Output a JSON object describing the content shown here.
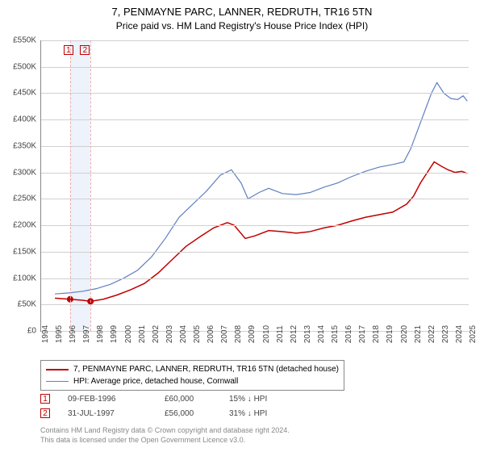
{
  "title_line1": "7, PENMAYNE PARC, LANNER, REDRUTH, TR16 5TN",
  "title_line2": "Price paid vs. HM Land Registry's House Price Index (HPI)",
  "chart": {
    "type": "line",
    "x_min": 1994,
    "x_max": 2025,
    "y_min": 0,
    "y_max": 550000,
    "y_ticks": [
      0,
      50000,
      100000,
      150000,
      200000,
      250000,
      300000,
      350000,
      400000,
      450000,
      500000,
      550000
    ],
    "y_tick_labels": [
      "£0",
      "£50K",
      "£100K",
      "£150K",
      "£200K",
      "£250K",
      "£300K",
      "£350K",
      "£400K",
      "£450K",
      "£500K",
      "£550K"
    ],
    "x_ticks": [
      1994,
      1995,
      1996,
      1997,
      1998,
      1999,
      2000,
      2001,
      2002,
      2003,
      2004,
      2005,
      2006,
      2007,
      2008,
      2009,
      2010,
      2011,
      2012,
      2013,
      2014,
      2015,
      2016,
      2017,
      2018,
      2019,
      2020,
      2021,
      2022,
      2023,
      2024,
      2025
    ],
    "grid_color": "#d0d0d0",
    "axis_color": "#888888",
    "background": "#ffffff",
    "band_fill": "#eef2fa",
    "band_xstart": 1996.1,
    "band_xend": 1997.58,
    "series": [
      {
        "name": "property",
        "label": "7, PENMAYNE PARC, LANNER, REDRUTH, TR16 5TN (detached house)",
        "color": "#c00000",
        "width": 1.5,
        "points": [
          [
            1995.0,
            62000
          ],
          [
            1996.1,
            60000
          ],
          [
            1997.0,
            58000
          ],
          [
            1997.58,
            56000
          ],
          [
            1998.5,
            60000
          ],
          [
            1999.5,
            68000
          ],
          [
            2000.5,
            78000
          ],
          [
            2001.5,
            90000
          ],
          [
            2002.5,
            110000
          ],
          [
            2003.5,
            135000
          ],
          [
            2004.5,
            160000
          ],
          [
            2005.5,
            178000
          ],
          [
            2006.5,
            195000
          ],
          [
            2007.5,
            205000
          ],
          [
            2008.0,
            200000
          ],
          [
            2008.8,
            175000
          ],
          [
            2009.5,
            180000
          ],
          [
            2010.5,
            190000
          ],
          [
            2011.5,
            188000
          ],
          [
            2012.5,
            185000
          ],
          [
            2013.5,
            188000
          ],
          [
            2014.5,
            195000
          ],
          [
            2015.5,
            200000
          ],
          [
            2016.5,
            208000
          ],
          [
            2017.5,
            215000
          ],
          [
            2018.5,
            220000
          ],
          [
            2019.5,
            225000
          ],
          [
            2020.5,
            240000
          ],
          [
            2021.0,
            255000
          ],
          [
            2021.5,
            280000
          ],
          [
            2022.0,
            300000
          ],
          [
            2022.5,
            320000
          ],
          [
            2023.0,
            312000
          ],
          [
            2023.5,
            305000
          ],
          [
            2024.0,
            300000
          ],
          [
            2024.5,
            302000
          ],
          [
            2024.9,
            298000
          ]
        ],
        "markers": [
          {
            "x": 1996.1,
            "y": 60000,
            "n": "1"
          },
          {
            "x": 1997.58,
            "y": 56000,
            "n": "2"
          }
        ]
      },
      {
        "name": "hpi",
        "label": "HPI: Average price, detached house, Cornwall",
        "color": "#6080c0",
        "width": 1.2,
        "points": [
          [
            1995.0,
            70000
          ],
          [
            1996.0,
            72000
          ],
          [
            1997.0,
            75000
          ],
          [
            1998.0,
            80000
          ],
          [
            1999.0,
            88000
          ],
          [
            2000.0,
            100000
          ],
          [
            2001.0,
            115000
          ],
          [
            2002.0,
            140000
          ],
          [
            2003.0,
            175000
          ],
          [
            2004.0,
            215000
          ],
          [
            2005.0,
            240000
          ],
          [
            2006.0,
            265000
          ],
          [
            2007.0,
            295000
          ],
          [
            2007.8,
            305000
          ],
          [
            2008.5,
            280000
          ],
          [
            2009.0,
            250000
          ],
          [
            2009.8,
            262000
          ],
          [
            2010.5,
            270000
          ],
          [
            2011.5,
            260000
          ],
          [
            2012.5,
            258000
          ],
          [
            2013.5,
            262000
          ],
          [
            2014.5,
            272000
          ],
          [
            2015.5,
            280000
          ],
          [
            2016.5,
            292000
          ],
          [
            2017.5,
            302000
          ],
          [
            2018.5,
            310000
          ],
          [
            2019.5,
            315000
          ],
          [
            2020.3,
            320000
          ],
          [
            2020.8,
            345000
          ],
          [
            2021.3,
            380000
          ],
          [
            2021.8,
            415000
          ],
          [
            2022.3,
            450000
          ],
          [
            2022.7,
            470000
          ],
          [
            2023.2,
            450000
          ],
          [
            2023.7,
            440000
          ],
          [
            2024.2,
            438000
          ],
          [
            2024.6,
            445000
          ],
          [
            2024.9,
            435000
          ]
        ]
      }
    ]
  },
  "legend": [
    {
      "color": "#c00000",
      "width": 2,
      "label": "7, PENMAYNE PARC, LANNER, REDRUTH, TR16 5TN (detached house)"
    },
    {
      "color": "#6080c0",
      "width": 1,
      "label": "HPI: Average price, detached house, Cornwall"
    }
  ],
  "sales": [
    {
      "n": "1",
      "date": "09-FEB-1996",
      "price": "£60,000",
      "delta": "15% ↓ HPI"
    },
    {
      "n": "2",
      "date": "31-JUL-1997",
      "price": "£56,000",
      "delta": "31% ↓ HPI"
    }
  ],
  "marker_labels": [
    {
      "n": "1",
      "x": 1995.4
    },
    {
      "n": "2",
      "x": 1996.6
    }
  ],
  "footnote_line1": "Contains HM Land Registry data © Crown copyright and database right 2024.",
  "footnote_line2": "This data is licensed under the Open Government Licence v3.0."
}
